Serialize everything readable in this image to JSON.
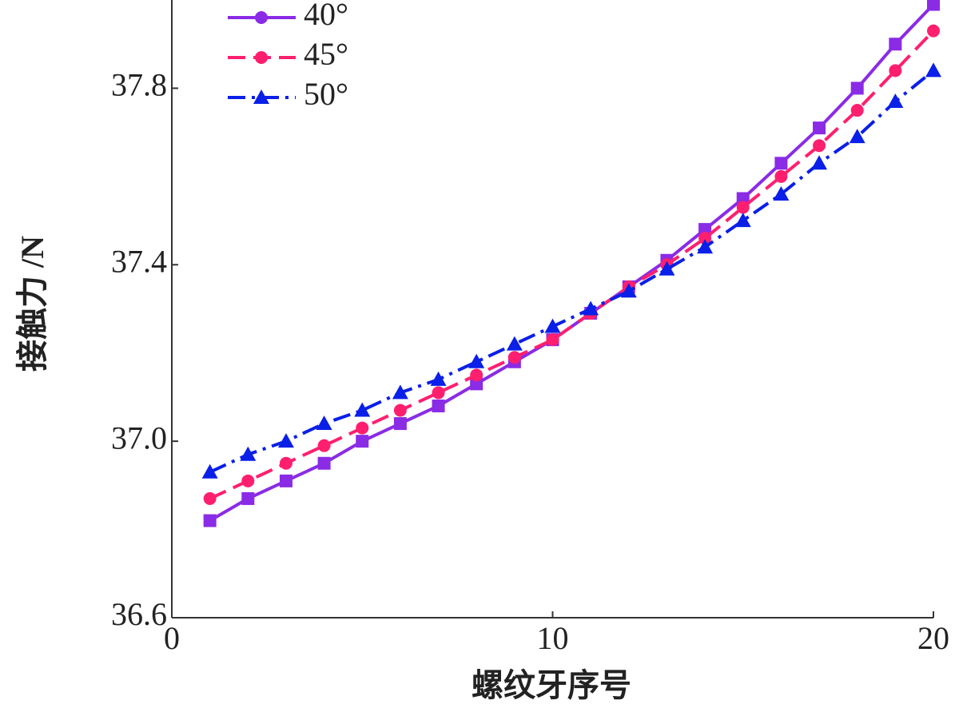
{
  "chart_data": {
    "type": "line",
    "x_label": "螺纹牙序号",
    "y_label": "接触力 /N",
    "x": [
      1,
      2,
      3,
      4,
      5,
      6,
      7,
      8,
      9,
      10,
      11,
      12,
      13,
      14,
      15,
      16,
      17,
      18,
      19,
      20
    ],
    "series": [
      {
        "name": "40°",
        "color": "#8a2be6",
        "marker": "square",
        "dash": "solid",
        "values": [
          36.82,
          36.87,
          36.91,
          36.95,
          37.0,
          37.04,
          37.08,
          37.13,
          37.18,
          37.23,
          37.29,
          37.35,
          37.41,
          37.48,
          37.55,
          37.63,
          37.71,
          37.8,
          37.9,
          37.99
        ]
      },
      {
        "name": "45°",
        "color": "#ff1f6e",
        "marker": "circle",
        "dash": "dashed",
        "values": [
          36.87,
          36.91,
          36.95,
          36.99,
          37.03,
          37.07,
          37.11,
          37.15,
          37.19,
          37.23,
          37.29,
          37.35,
          37.4,
          37.46,
          37.53,
          37.6,
          37.67,
          37.75,
          37.84,
          37.93
        ]
      },
      {
        "name": "50°",
        "color": "#0a1fe8",
        "marker": "triangle",
        "dash": "dashdot",
        "values": [
          36.93,
          36.97,
          37.0,
          37.04,
          37.07,
          37.11,
          37.14,
          37.18,
          37.22,
          37.26,
          37.3,
          37.34,
          37.39,
          37.44,
          37.5,
          37.56,
          37.63,
          37.69,
          37.77,
          37.84
        ]
      }
    ],
    "xlim": [
      0,
      20
    ],
    "xticks": [
      0,
      10,
      20
    ],
    "ylim": [
      36.6,
      38.0
    ],
    "yticks": [
      36.6,
      {
        "value": 37,
        "label": "37.0"
      },
      37.4,
      37.8
    ],
    "legend": "upper left"
  }
}
